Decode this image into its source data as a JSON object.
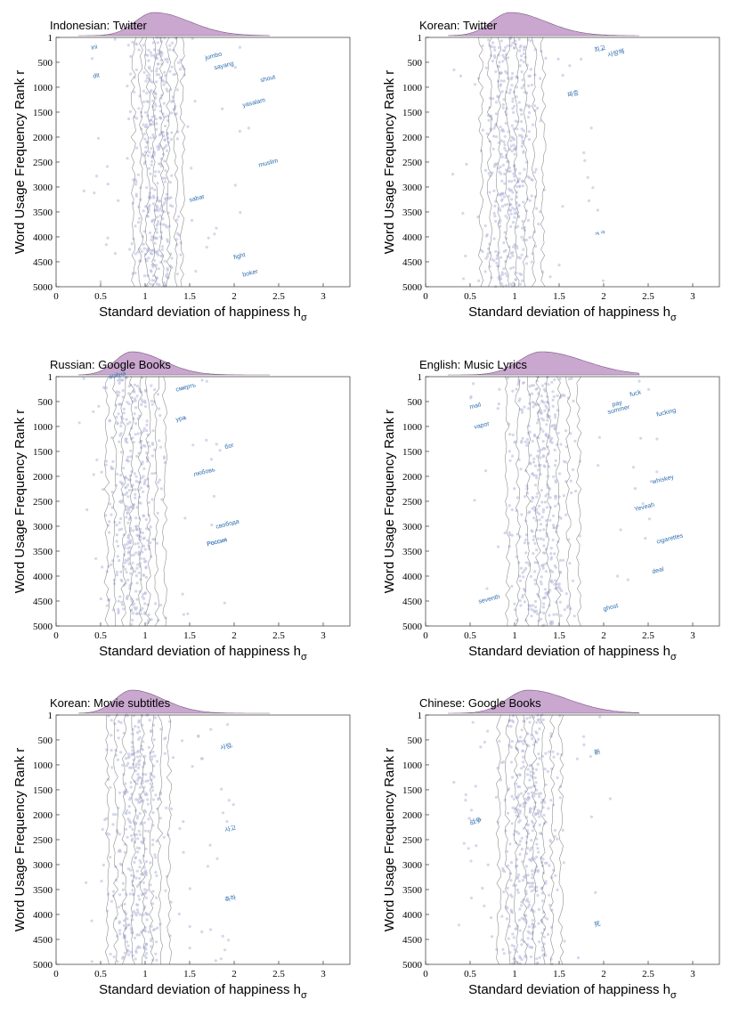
{
  "figure": {
    "colors": {
      "density_fill": "#c9a7cf",
      "density_stroke": "#7a5a80",
      "scatter_point": "#b9bddd",
      "word_label": "#2f6fb0",
      "trend_line": "#6b6b6b",
      "axis": "#333333"
    }
  },
  "chart_data": [
    {
      "type": "scatter",
      "title": "Indonesian: Twitter",
      "xlabel": "Standard deviation of happiness",
      "xlabel_subscript_symbol": "h",
      "xlabel_subscript": "σ",
      "ylabel": "Word Usage Frequency Rank r",
      "xlim": [
        0,
        3.3
      ],
      "ylim": [
        5000,
        1
      ],
      "xticks": [
        0,
        0.5,
        1,
        1.5,
        2,
        2.5,
        3
      ],
      "yticks": [
        1,
        500,
        1000,
        1500,
        2000,
        2500,
        3000,
        3500,
        4000,
        4500,
        5000
      ],
      "density_mean": 1.1,
      "density_sd": 0.25,
      "spread_range": [
        0.75,
        1.5
      ],
      "outlier_range": [
        0.3,
        2.2
      ],
      "words": [
        {
          "text": "ini",
          "x": 0.4,
          "y": 250
        },
        {
          "text": "dit",
          "x": 0.42,
          "y": 820
        },
        {
          "text": "jumbo",
          "x": 1.68,
          "y": 450
        },
        {
          "text": "sayang",
          "x": 1.78,
          "y": 650
        },
        {
          "text": "shout",
          "x": 2.3,
          "y": 900
        },
        {
          "text": "yasalam",
          "x": 2.1,
          "y": 1400
        },
        {
          "text": "muslim",
          "x": 2.28,
          "y": 2600
        },
        {
          "text": "fight",
          "x": 2.0,
          "y": 4450
        },
        {
          "text": "boker",
          "x": 2.1,
          "y": 4800
        },
        {
          "text": "sabar",
          "x": 1.5,
          "y": 3300
        }
      ]
    },
    {
      "type": "scatter",
      "title": "Korean: Twitter",
      "xlabel": "Standard deviation of happiness",
      "xlabel_subscript_symbol": "h",
      "xlabel_subscript": "σ",
      "ylabel": "Word Usage Frequency Rank r",
      "xlim": [
        0,
        3.3
      ],
      "ylim": [
        5000,
        1
      ],
      "xticks": [
        0,
        0.5,
        1,
        1.5,
        2,
        2.5,
        3
      ],
      "yticks": [
        1,
        500,
        1000,
        1500,
        2000,
        2500,
        3000,
        3500,
        4000,
        4500,
        5000
      ],
      "density_mean": 0.95,
      "density_sd": 0.25,
      "spread_range": [
        0.5,
        1.4
      ],
      "outlier_range": [
        0.3,
        2.0
      ],
      "words": [
        {
          "text": "최고",
          "x": 1.9,
          "y": 300
        },
        {
          "text": "사랑해",
          "x": 2.05,
          "y": 400
        },
        {
          "text": "짜증",
          "x": 1.6,
          "y": 1200
        },
        {
          "text": "ㅋㅋ",
          "x": 1.9,
          "y": 4000
        }
      ]
    },
    {
      "type": "scatter",
      "title": "Russian: Google Books",
      "xlabel": "Standard deviation of happiness",
      "xlabel_subscript_symbol": "h",
      "xlabel_subscript": "σ",
      "ylabel": "Word Usage Frequency Rank r",
      "xlim": [
        0,
        3.3
      ],
      "ylim": [
        5000,
        1
      ],
      "xticks": [
        0,
        0.5,
        1,
        1.5,
        2,
        2.5,
        3
      ],
      "yticks": [
        1,
        500,
        1000,
        1500,
        2000,
        2500,
        3000,
        3500,
        4000,
        4500,
        5000
      ],
      "density_mean": 0.85,
      "density_sd": 0.22,
      "spread_range": [
        0.45,
        1.3
      ],
      "outlier_range": [
        0.2,
        1.9
      ],
      "words": [
        {
          "text": "война",
          "x": 0.6,
          "y": 50
        },
        {
          "text": "смерть",
          "x": 1.35,
          "y": 300
        },
        {
          "text": "ура",
          "x": 1.35,
          "y": 900
        },
        {
          "text": "бог",
          "x": 1.9,
          "y": 1450
        },
        {
          "text": "любовь",
          "x": 1.55,
          "y": 2000
        },
        {
          "text": "свобода",
          "x": 1.8,
          "y": 3050
        },
        {
          "text": "Россия",
          "x": 1.7,
          "y": 3400
        },
        {
          "text": "Россия",
          "x": 1.7,
          "y": 3400
        }
      ]
    },
    {
      "type": "scatter",
      "title": "English: Music Lyrics",
      "xlabel": "Standard deviation of happiness",
      "xlabel_subscript_symbol": "h",
      "xlabel_subscript": "σ",
      "ylabel": "Word Usage Frequency Rank r",
      "xlim": [
        0,
        3.3
      ],
      "ylim": [
        5000,
        1
      ],
      "xticks": [
        0,
        0.5,
        1,
        1.5,
        2,
        2.5,
        3
      ],
      "yticks": [
        1,
        500,
        1000,
        1500,
        2000,
        2500,
        3000,
        3500,
        4000,
        4500,
        5000
      ],
      "density_mean": 1.3,
      "density_sd": 0.3,
      "spread_range": [
        0.8,
        1.8
      ],
      "outlier_range": [
        0.5,
        2.6
      ],
      "words": [
        {
          "text": "fuck",
          "x": 2.3,
          "y": 400
        },
        {
          "text": "summer",
          "x": 2.05,
          "y": 750
        },
        {
          "text": "fucking",
          "x": 2.6,
          "y": 800
        },
        {
          "text": "pay",
          "x": 2.1,
          "y": 600
        },
        {
          "text": "whiskey",
          "x": 2.55,
          "y": 2150
        },
        {
          "text": "Yeveah",
          "x": 2.35,
          "y": 2700
        },
        {
          "text": "cigarettes",
          "x": 2.6,
          "y": 3350
        },
        {
          "text": "deal",
          "x": 2.55,
          "y": 3950
        },
        {
          "text": "mail",
          "x": 0.5,
          "y": 650
        },
        {
          "text": "vapor",
          "x": 0.55,
          "y": 1050
        },
        {
          "text": "seventh",
          "x": 0.6,
          "y": 4550
        },
        {
          "text": "ghost",
          "x": 2.0,
          "y": 4700
        }
      ]
    },
    {
      "type": "scatter",
      "title": "Korean: Movie subtitles",
      "xlabel": "Standard deviation of happiness",
      "xlabel_subscript_symbol": "h",
      "xlabel_subscript": "σ",
      "ylabel": "Word Usage Frequency Rank r",
      "xlim": [
        0,
        3.3
      ],
      "ylim": [
        5000,
        1
      ],
      "xticks": [
        0,
        0.5,
        1,
        1.5,
        2,
        2.5,
        3
      ],
      "yticks": [
        1,
        500,
        1000,
        1500,
        2000,
        2500,
        3000,
        3500,
        4000,
        4500,
        5000
      ],
      "density_mean": 0.85,
      "density_sd": 0.22,
      "spread_range": [
        0.45,
        1.35
      ],
      "outlier_range": [
        0.3,
        2.0
      ],
      "words": [
        {
          "text": "사랑",
          "x": 1.85,
          "y": 700
        },
        {
          "text": "사고",
          "x": 1.9,
          "y": 2350
        },
        {
          "text": "축하",
          "x": 1.9,
          "y": 3750
        }
      ]
    },
    {
      "type": "scatter",
      "title": "Chinese: Google Books",
      "xlabel": "Standard deviation of happiness",
      "xlabel_subscript_symbol": "h",
      "xlabel_subscript": "σ",
      "ylabel": "Word Usage Frequency Rank r",
      "xlim": [
        0,
        3.3
      ],
      "ylim": [
        5000,
        1
      ],
      "xticks": [
        0,
        0.5,
        1,
        1.5,
        2,
        2.5,
        3
      ],
      "yticks": [
        1,
        500,
        1000,
        1500,
        2000,
        2500,
        3000,
        3500,
        4000,
        4500,
        5000
      ],
      "density_mean": 1.15,
      "density_sd": 0.28,
      "spread_range": [
        0.7,
        1.6
      ],
      "outlier_range": [
        0.3,
        2.1
      ],
      "words": [
        {
          "text": "新",
          "x": 1.9,
          "y": 800
        },
        {
          "text": "死",
          "x": 1.9,
          "y": 4250
        },
        {
          "text": "战争",
          "x": 0.5,
          "y": 2200
        }
      ]
    }
  ]
}
